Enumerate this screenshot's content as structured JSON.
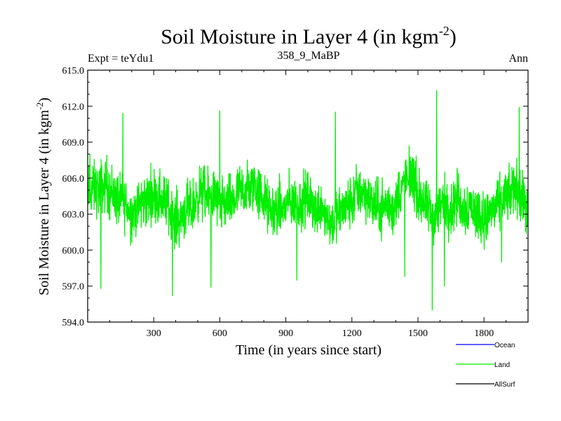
{
  "chart_data": {
    "type": "line",
    "title": "Soil Moisture in Layer 4 (in kgm",
    "title_sup": "-2",
    "title_close": ")",
    "subtitle_left": "Expt = teYdu1",
    "subtitle_center": "358_9_MaBP",
    "subtitle_right": "Ann",
    "xlabel": "Time (in years since start)",
    "ylabel": "Soil Moisture in Layer 4 (in kgm",
    "ylabel_sup": "-2",
    "ylabel_close": ")",
    "xlim": [
      0,
      2000
    ],
    "ylim": [
      594.0,
      615.0
    ],
    "xticks": [
      300,
      600,
      900,
      1200,
      1500,
      1800
    ],
    "xtick_labels": [
      "300",
      "600",
      "900",
      "1200",
      "1500",
      "1800"
    ],
    "yticks": [
      594,
      597,
      600,
      603,
      606,
      609,
      612,
      615
    ],
    "ytick_labels": [
      "594.0",
      "597.0",
      "600.0",
      "603.0",
      "606.0",
      "609.0",
      "612.0",
      "615.0"
    ],
    "series": [
      {
        "name": "Ocean",
        "color": "#0000ff",
        "values": []
      },
      {
        "name": "Land",
        "color": "#00ee00",
        "x_start": 1,
        "x_step": 1,
        "n_points": 2000,
        "mean": 604.0,
        "min": 595.0,
        "max": 613.3,
        "anchors": [
          [
            10,
            608.0
          ],
          [
            60,
            596.8
          ],
          [
            160,
            611.4
          ],
          [
            385,
            596.2
          ],
          [
            600,
            611.6
          ],
          [
            560,
            596.9
          ],
          [
            950,
            597.5
          ],
          [
            1125,
            611.5
          ],
          [
            1440,
            597.8
          ],
          [
            1565,
            595.0
          ],
          [
            1585,
            613.3
          ],
          [
            1620,
            597.0
          ],
          [
            1880,
            599.0
          ],
          [
            1960,
            611.9
          ]
        ]
      },
      {
        "name": "AllSurf",
        "color": "#000000",
        "values": []
      }
    ],
    "legend": [
      {
        "label": "Ocean",
        "color": "#0000ff"
      },
      {
        "label": "Land",
        "color": "#00ee00"
      },
      {
        "label": "AllSurf",
        "color": "#000000"
      }
    ],
    "legend_position": "bottom-right",
    "grid": false
  }
}
